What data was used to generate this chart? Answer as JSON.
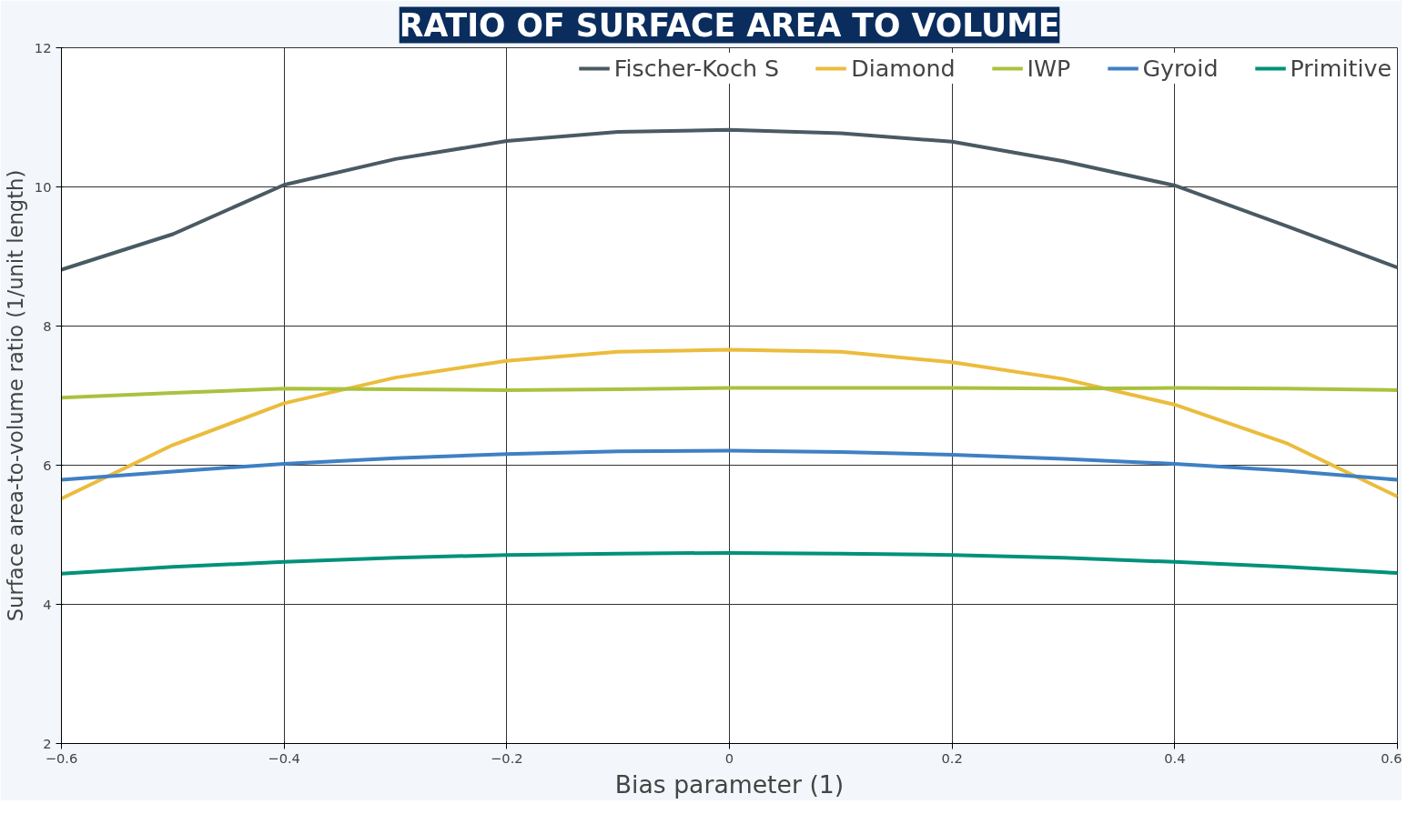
{
  "chart_data": {
    "type": "line",
    "title": "RATIO OF SURFACE AREA TO VOLUME",
    "xlabel": "Bias parameter (1)",
    "ylabel": "Surface area-to-volume ratio (1/unit length)",
    "x": [
      -0.6,
      -0.5,
      -0.4,
      -0.3,
      -0.2,
      -0.1,
      0,
      0.1,
      0.2,
      0.3,
      0.4,
      0.5,
      0.6
    ],
    "series": [
      {
        "name": "Fischer-Koch S",
        "color": "#4a5a63",
        "values": [
          8.81,
          9.32,
          10.03,
          10.4,
          10.66,
          10.79,
          10.82,
          10.77,
          10.65,
          10.37,
          10.02,
          9.44,
          8.84
        ]
      },
      {
        "name": "Diamond",
        "color": "#ebbc3c",
        "values": [
          5.52,
          6.29,
          6.89,
          7.26,
          7.5,
          7.63,
          7.66,
          7.63,
          7.48,
          7.24,
          6.87,
          6.32,
          5.55
        ]
      },
      {
        "name": "IWP",
        "color": "#a9c23f",
        "values": [
          6.97,
          7.04,
          7.1,
          7.09,
          7.08,
          7.09,
          7.11,
          7.11,
          7.11,
          7.1,
          7.11,
          7.1,
          7.08
        ]
      },
      {
        "name": "Gyroid",
        "color": "#3f80c3",
        "values": [
          5.79,
          5.91,
          6.02,
          6.1,
          6.16,
          6.2,
          6.21,
          6.19,
          6.15,
          6.09,
          6.02,
          5.92,
          5.79
        ]
      },
      {
        "name": "Primitive",
        "color": "#00917a",
        "values": [
          4.44,
          4.54,
          4.61,
          4.67,
          4.71,
          4.73,
          4.74,
          4.73,
          4.71,
          4.67,
          4.61,
          4.54,
          4.45
        ]
      }
    ],
    "xlim": [
      -0.6,
      0.6
    ],
    "ylim": [
      2,
      12
    ],
    "xticks": [
      -0.6,
      -0.4,
      -0.2,
      0,
      0.2,
      0.4,
      0.6
    ],
    "yticks": [
      2,
      4,
      6,
      8,
      10,
      12
    ],
    "grid": true,
    "legend": "top right",
    "line_style": "solid"
  }
}
